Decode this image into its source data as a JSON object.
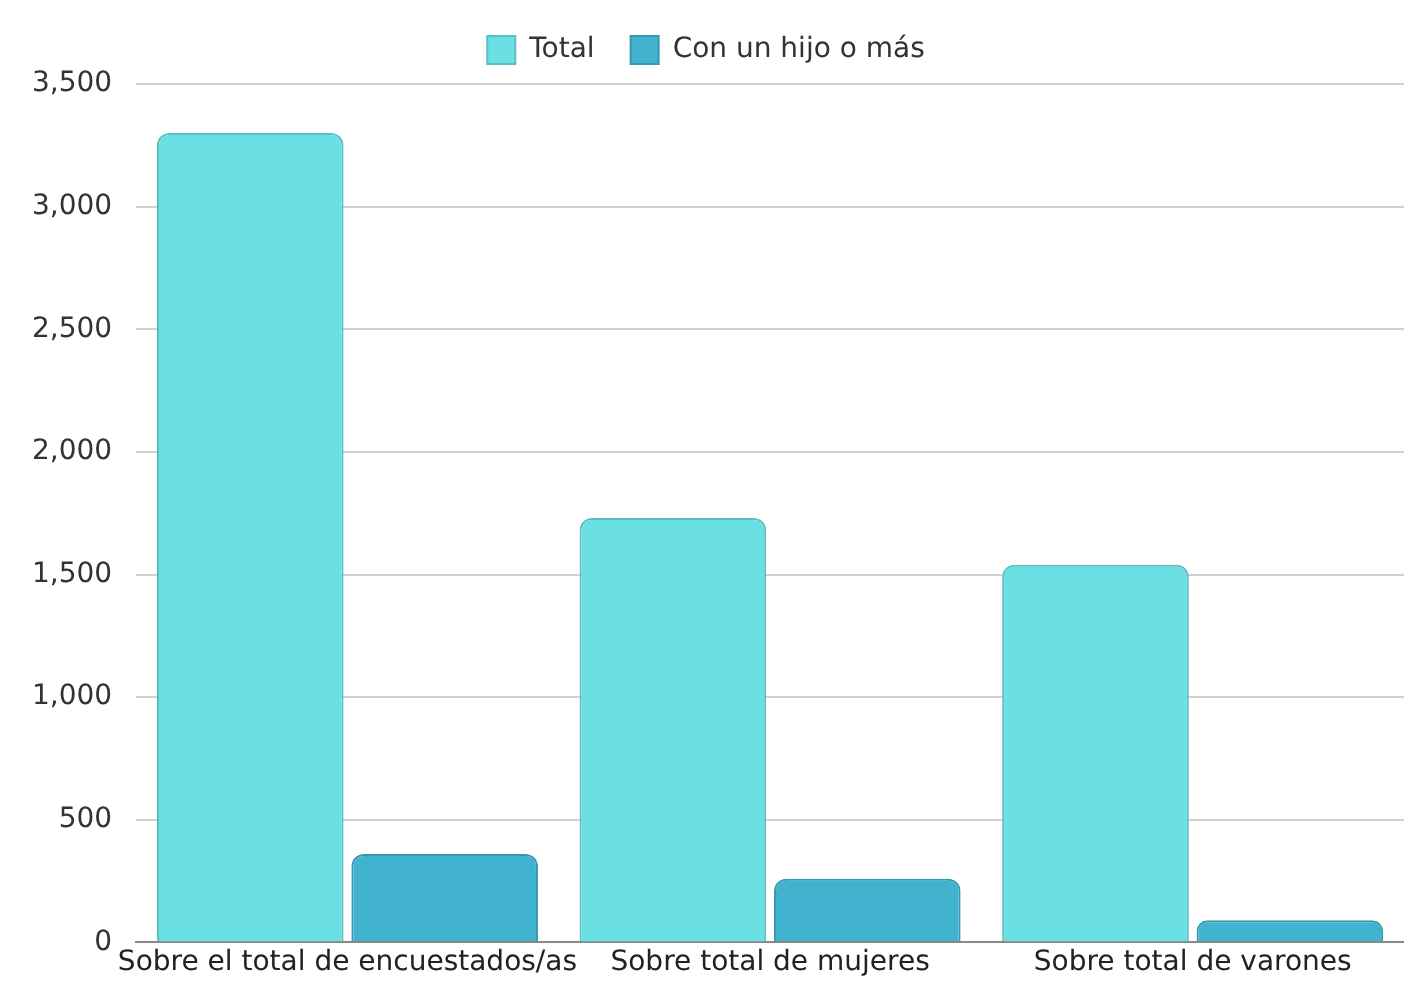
{
  "chart_data": {
    "type": "bar",
    "categories": [
      "Sobre el total de encuestados/as",
      "Sobre total de mujeres",
      "Sobre total de varones"
    ],
    "series": [
      {
        "name": "Total",
        "color": "#6ae0e5",
        "values": [
          3300,
          1730,
          1540
        ]
      },
      {
        "name": "Con un hijo o más",
        "color": "#42b3cf",
        "values": [
          360,
          260,
          90
        ]
      }
    ],
    "ylim": [
      0,
      3500
    ],
    "yticks": [
      0,
      500,
      {
        "value": 1000,
        "label": "1,000"
      },
      {
        "value": 1500,
        "label": "1,500"
      },
      {
        "value": 2000,
        "label": "2,000"
      },
      {
        "value": 2500,
        "label": "2,500"
      },
      {
        "value": 3000,
        "label": "3,000"
      },
      {
        "value": 3500,
        "label": "3,500"
      }
    ],
    "grid": "y",
    "legend": "top"
  }
}
